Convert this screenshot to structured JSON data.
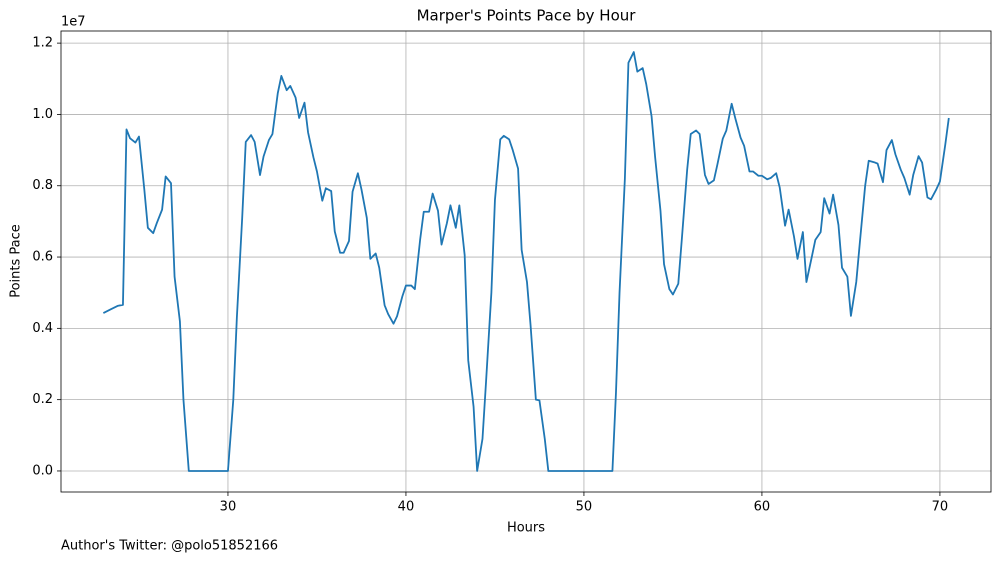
{
  "chart_data": {
    "type": "line",
    "title": "Marper's Points Pace by Hour",
    "x_label": "Hours",
    "y_label": "Points Pace",
    "y_offset_text": "1e7",
    "footer": "Author's Twitter: @polo51852166",
    "grid": true,
    "xlim": [
      20.62,
      72.87
    ],
    "ylim": [
      -0.059,
      1.234
    ],
    "xticks": [
      30,
      40,
      50,
      60,
      70
    ],
    "yticks": [
      {
        "value": 0,
        "label": "0.0"
      },
      0.2,
      0.4,
      0.6,
      0.8,
      {
        "value": 1,
        "label": "1.0"
      },
      1.2
    ],
    "x": [
      23.0,
      23.4,
      23.8,
      24.1,
      24.3,
      24.5,
      24.8,
      25.0,
      25.3,
      25.5,
      25.8,
      26.0,
      26.3,
      26.5,
      26.8,
      27.0,
      27.3,
      27.5,
      27.8,
      28.5,
      29.5,
      30.0,
      30.3,
      30.5,
      30.8,
      31.0,
      31.3,
      31.5,
      31.8,
      32.0,
      32.3,
      32.5,
      32.8,
      33.0,
      33.3,
      33.5,
      33.8,
      34.0,
      34.3,
      34.5,
      34.8,
      35.0,
      35.3,
      35.5,
      35.8,
      36.0,
      36.3,
      36.5,
      36.8,
      37.0,
      37.3,
      37.5,
      37.8,
      38.0,
      38.3,
      38.5,
      38.8,
      39.0,
      39.3,
      39.5,
      39.8,
      40.0,
      40.3,
      40.5,
      40.8,
      41.0,
      41.3,
      41.5,
      41.8,
      42.0,
      42.3,
      42.5,
      42.8,
      43.0,
      43.3,
      43.5,
      43.8,
      44.0,
      44.3,
      44.5,
      44.8,
      45.0,
      45.3,
      45.5,
      45.8,
      46.0,
      46.3,
      46.5,
      46.8,
      47.0,
      47.3,
      47.5,
      47.8,
      48.0,
      49.0,
      50.0,
      51.0,
      51.6,
      51.8,
      52.0,
      52.3,
      52.5,
      52.8,
      53.0,
      53.3,
      53.5,
      53.8,
      54.0,
      54.3,
      54.5,
      54.8,
      55.0,
      55.3,
      55.5,
      55.8,
      56.0,
      56.3,
      56.5,
      56.8,
      57.0,
      57.3,
      57.5,
      57.8,
      58.0,
      58.3,
      58.5,
      58.8,
      59.0,
      59.3,
      59.5,
      59.8,
      60.0,
      60.3,
      60.5,
      60.8,
      61.0,
      61.3,
      61.5,
      61.8,
      62.0,
      62.3,
      62.5,
      62.8,
      63.0,
      63.3,
      63.5,
      63.8,
      64.0,
      64.3,
      64.5,
      64.8,
      65.0,
      65.3,
      65.5,
      65.8,
      66.0,
      66.3,
      66.5,
      66.8,
      67.0,
      67.3,
      67.5,
      67.8,
      68.0,
      68.3,
      68.5,
      68.8,
      69.0,
      69.3,
      69.5,
      69.8,
      70.0,
      70.3,
      70.5
    ],
    "series": [
      {
        "name": "Points Pace",
        "color": "#1f77b4",
        "values": [
          0.443,
          0.453,
          0.463,
          0.466,
          0.958,
          0.933,
          0.921,
          0.938,
          0.79,
          0.682,
          0.667,
          0.695,
          0.733,
          0.826,
          0.807,
          0.545,
          0.42,
          0.2,
          0.0,
          0.0,
          0.0,
          0.0,
          0.2,
          0.43,
          0.71,
          0.923,
          0.942,
          0.923,
          0.83,
          0.882,
          0.928,
          0.945,
          1.06,
          1.108,
          1.068,
          1.08,
          1.047,
          0.99,
          1.033,
          0.95,
          0.88,
          0.84,
          0.758,
          0.793,
          0.785,
          0.672,
          0.612,
          0.612,
          0.645,
          0.783,
          0.835,
          0.79,
          0.71,
          0.595,
          0.61,
          0.57,
          0.465,
          0.44,
          0.413,
          0.434,
          0.49,
          0.52,
          0.52,
          0.51,
          0.65,
          0.727,
          0.727,
          0.778,
          0.73,
          0.635,
          0.695,
          0.745,
          0.682,
          0.745,
          0.605,
          0.31,
          0.18,
          0.0,
          0.09,
          0.25,
          0.5,
          0.76,
          0.93,
          0.94,
          0.93,
          0.9,
          0.848,
          0.62,
          0.53,
          0.41,
          0.2,
          0.198,
          0.09,
          0.0,
          0.0,
          0.0,
          0.0,
          0.0,
          0.22,
          0.5,
          0.82,
          1.145,
          1.175,
          1.12,
          1.13,
          1.085,
          0.995,
          0.88,
          0.73,
          0.58,
          0.51,
          0.495,
          0.525,
          0.65,
          0.845,
          0.945,
          0.955,
          0.945,
          0.83,
          0.805,
          0.815,
          0.86,
          0.932,
          0.955,
          1.03,
          0.99,
          0.935,
          0.912,
          0.84,
          0.84,
          0.828,
          0.828,
          0.818,
          0.822,
          0.835,
          0.795,
          0.688,
          0.733,
          0.658,
          0.595,
          0.67,
          0.53,
          0.6,
          0.648,
          0.67,
          0.765,
          0.722,
          0.775,
          0.69,
          0.57,
          0.545,
          0.435,
          0.53,
          0.64,
          0.8,
          0.87,
          0.866,
          0.862,
          0.81,
          0.9,
          0.928,
          0.888,
          0.845,
          0.822,
          0.775,
          0.83,
          0.883,
          0.865,
          0.767,
          0.762,
          0.79,
          0.812,
          0.915,
          0.99
        ]
      }
    ]
  }
}
